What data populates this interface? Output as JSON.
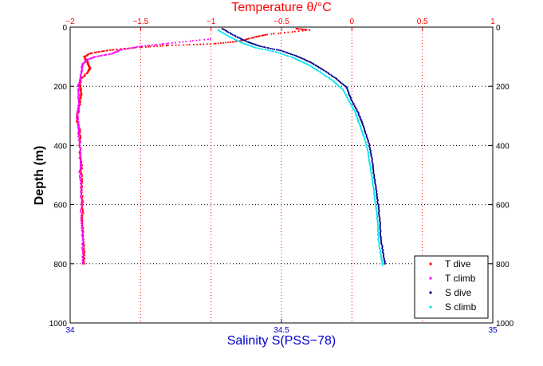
{
  "chart_data": {
    "type": "scatter",
    "title_top": "Temperature θ/°C",
    "xlabel_bottom": "Salinity S(PSS−78)",
    "ylabel": "Depth (m)",
    "grid": true,
    "y_axis": {
      "range": [
        0,
        1000
      ],
      "reversed": true,
      "ticks": [
        0,
        200,
        400,
        600,
        800,
        1000
      ],
      "tick_labels": [
        "0",
        "200",
        "400",
        "600",
        "800",
        "1000"
      ]
    },
    "x_top": {
      "range": [
        -2,
        1
      ],
      "ticks": [
        -2,
        -1.5,
        -1,
        -0.5,
        0,
        0.5,
        1
      ],
      "tick_labels": [
        "−2",
        "−1.5",
        "−1",
        "−0.5",
        "0",
        "0.5",
        "1"
      ]
    },
    "x_bottom": {
      "range": [
        34,
        35
      ],
      "ticks": [
        34,
        34.5,
        35
      ],
      "tick_labels": [
        "34",
        "34.5",
        "35"
      ]
    },
    "legend": {
      "position": "bottom-right"
    },
    "series": [
      {
        "name": "T dive",
        "axis": "top",
        "color": "#ff0000",
        "points": [
          [
            -0.4,
            5
          ],
          [
            -0.3,
            10
          ],
          [
            -0.6,
            25
          ],
          [
            -0.7,
            35
          ],
          [
            -0.8,
            48
          ],
          [
            -1.0,
            57
          ],
          [
            -1.3,
            62
          ],
          [
            -1.55,
            70
          ],
          [
            -1.72,
            78
          ],
          [
            -1.85,
            88
          ],
          [
            -1.9,
            100
          ],
          [
            -1.88,
            115
          ],
          [
            -1.87,
            130
          ],
          [
            -1.86,
            140
          ],
          [
            -1.88,
            155
          ],
          [
            -1.93,
            180
          ],
          [
            -1.93,
            200
          ],
          [
            -1.92,
            220
          ],
          [
            -1.93,
            250
          ],
          [
            -1.94,
            280
          ],
          [
            -1.95,
            300
          ],
          [
            -1.95,
            320
          ],
          [
            -1.93,
            350
          ],
          [
            -1.93,
            380
          ],
          [
            -1.93,
            420
          ],
          [
            -1.92,
            460
          ],
          [
            -1.92,
            500
          ],
          [
            -1.92,
            550
          ],
          [
            -1.91,
            600
          ],
          [
            -1.91,
            650
          ],
          [
            -1.91,
            700
          ],
          [
            -1.9,
            750
          ],
          [
            -1.9,
            800
          ]
        ]
      },
      {
        "name": "T climb",
        "axis": "top",
        "color": "#ff00ff",
        "points": [
          [
            -1.0,
            40
          ],
          [
            -1.3,
            55
          ],
          [
            -1.5,
            65
          ],
          [
            -1.65,
            78
          ],
          [
            -1.7,
            90
          ],
          [
            -1.82,
            100
          ],
          [
            -1.88,
            110
          ],
          [
            -1.91,
            125
          ],
          [
            -1.92,
            150
          ],
          [
            -1.93,
            180
          ],
          [
            -1.94,
            200
          ],
          [
            -1.94,
            240
          ],
          [
            -1.94,
            270
          ],
          [
            -1.95,
            300
          ],
          [
            -1.94,
            330
          ],
          [
            -1.94,
            360
          ],
          [
            -1.93,
            400
          ],
          [
            -1.93,
            450
          ],
          [
            -1.93,
            500
          ],
          [
            -1.92,
            550
          ],
          [
            -1.92,
            600
          ],
          [
            -1.92,
            650
          ],
          [
            -1.91,
            700
          ],
          [
            -1.91,
            750
          ],
          [
            -1.91,
            800
          ]
        ]
      },
      {
        "name": "S dive",
        "axis": "bottom",
        "color": "#00008b",
        "points": [
          [
            34.36,
            5
          ],
          [
            34.39,
            30
          ],
          [
            34.42,
            50
          ],
          [
            34.45,
            65
          ],
          [
            34.5,
            80
          ],
          [
            34.54,
            100
          ],
          [
            34.57,
            120
          ],
          [
            34.6,
            145
          ],
          [
            34.63,
            175
          ],
          [
            34.655,
            205
          ],
          [
            34.665,
            245
          ],
          [
            34.68,
            285
          ],
          [
            34.69,
            320
          ],
          [
            34.7,
            360
          ],
          [
            34.71,
            410
          ],
          [
            34.715,
            460
          ],
          [
            34.72,
            510
          ],
          [
            34.725,
            560
          ],
          [
            34.73,
            610
          ],
          [
            34.733,
            660
          ],
          [
            34.735,
            710
          ],
          [
            34.74,
            760
          ],
          [
            34.745,
            800
          ]
        ]
      },
      {
        "name": "S climb",
        "axis": "bottom",
        "color": "#00e5ee",
        "points": [
          [
            34.35,
            10
          ],
          [
            34.38,
            35
          ],
          [
            34.41,
            55
          ],
          [
            34.44,
            70
          ],
          [
            34.49,
            85
          ],
          [
            34.53,
            105
          ],
          [
            34.56,
            125
          ],
          [
            34.59,
            150
          ],
          [
            34.62,
            180
          ],
          [
            34.645,
            210
          ],
          [
            34.66,
            250
          ],
          [
            34.675,
            290
          ],
          [
            34.685,
            330
          ],
          [
            34.695,
            370
          ],
          [
            34.705,
            420
          ],
          [
            34.71,
            470
          ],
          [
            34.715,
            520
          ],
          [
            34.72,
            570
          ],
          [
            34.725,
            620
          ],
          [
            34.728,
            670
          ],
          [
            34.73,
            720
          ],
          [
            34.735,
            770
          ],
          [
            34.74,
            805
          ]
        ]
      }
    ]
  }
}
